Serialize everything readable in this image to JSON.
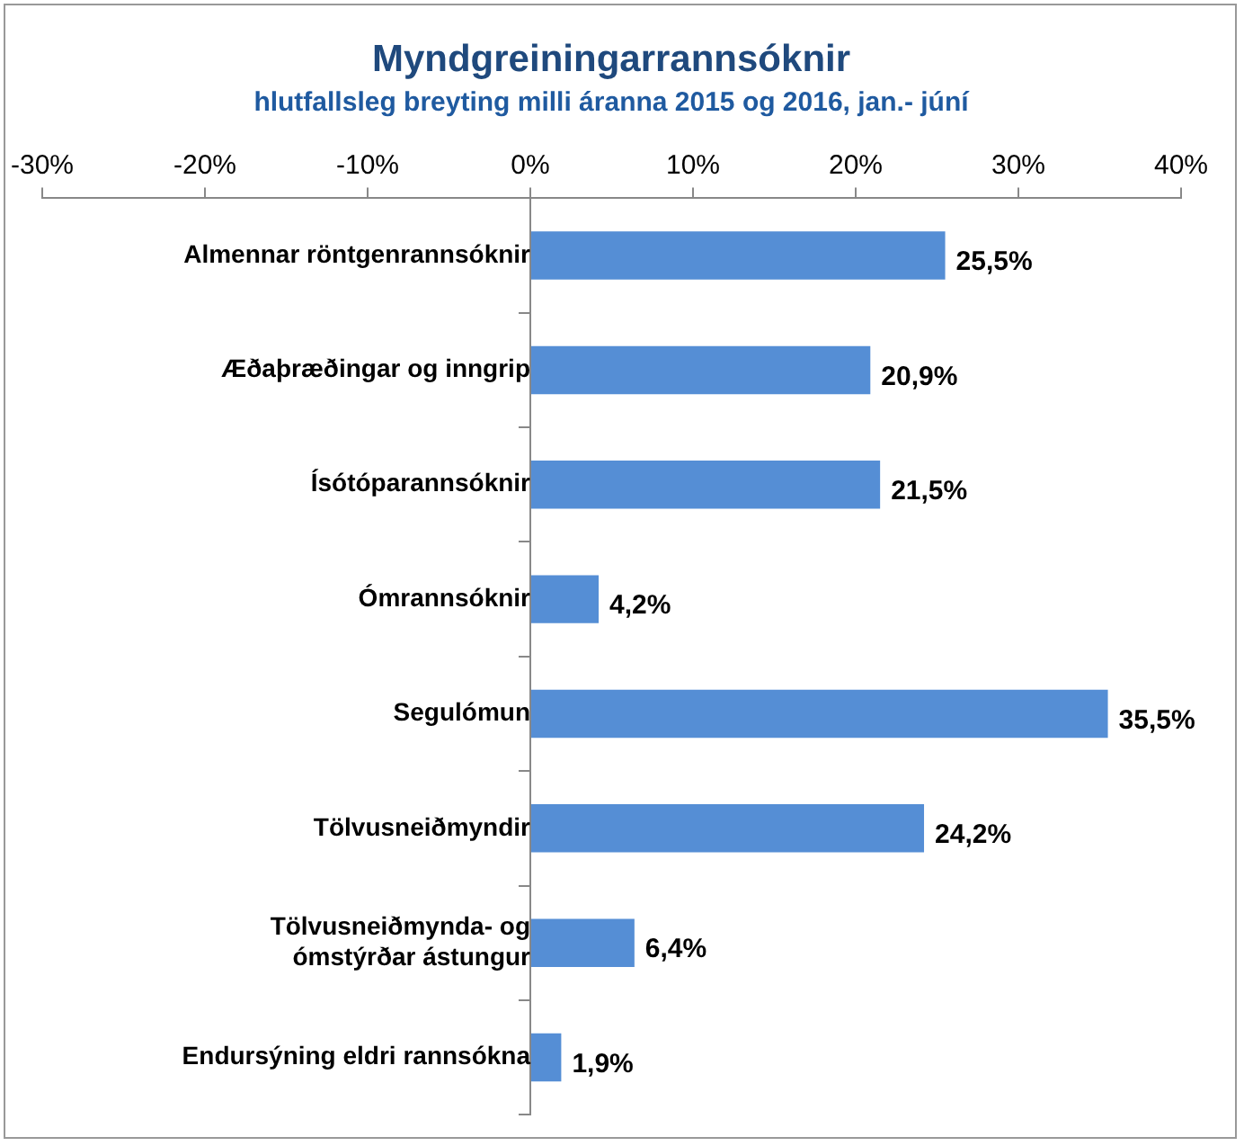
{
  "chart_data": {
    "type": "bar",
    "orientation": "horizontal",
    "title": "Myndgreiningarrannsóknir",
    "subtitle": "hlutfallsleg breyting milli áranna 2015 og 2016, jan.- júní",
    "categories": [
      "Almennar röntgenrannsóknir",
      "Æðaþræðingar og inngrip",
      "Ísótóparannsóknir",
      "Ómrannsóknir",
      "Segulómun",
      "Tölvusneiðmyndir",
      "Tölvusneiðmynda- og ómstýrðar ástungur",
      "Endursýning eldri rannsókna"
    ],
    "values": [
      25.5,
      20.9,
      21.5,
      4.2,
      35.5,
      24.2,
      6.4,
      1.9
    ],
    "value_labels": [
      "25,5%",
      "20,9%",
      "21,5%",
      "4,2%",
      "35,5%",
      "24,2%",
      "6,4%",
      "1,9%"
    ],
    "color": "#558ed5",
    "xlim": [
      -30,
      40
    ],
    "xticks": [
      {
        "value": -30,
        "label": "-30%"
      },
      {
        "value": -20,
        "label": "-20%"
      },
      {
        "value": -10,
        "label": "-10%"
      },
      {
        "value": 0,
        "label": "0%"
      },
      {
        "value": 10,
        "label": "10%"
      },
      {
        "value": 20,
        "label": "20%"
      },
      {
        "value": 30,
        "label": "30%"
      },
      {
        "value": 40,
        "label": "40%"
      }
    ],
    "grid": false,
    "legend": false
  }
}
